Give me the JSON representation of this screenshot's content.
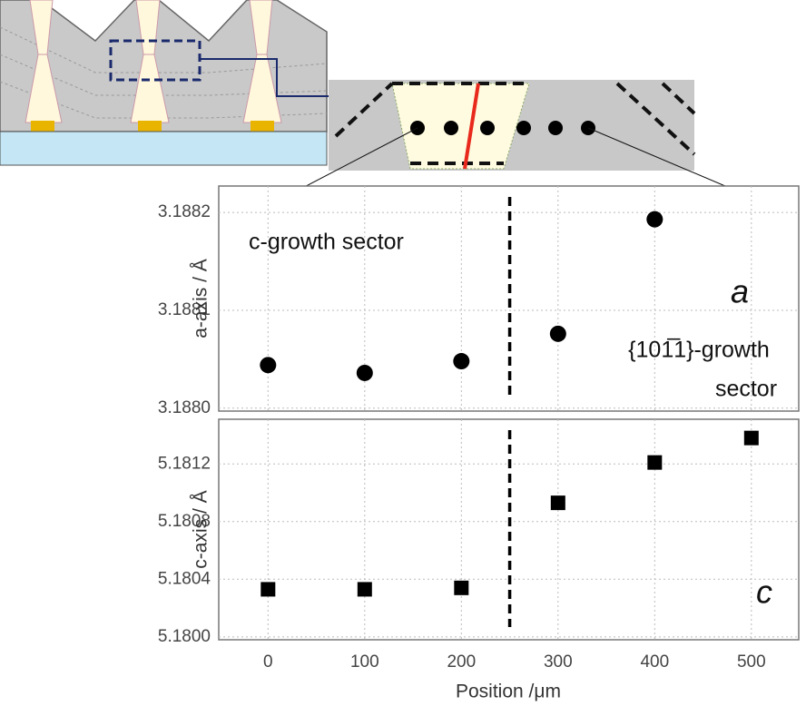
{
  "chart_data": [
    {
      "type": "scatter",
      "marker": "circle",
      "color": "#000000",
      "ylabel": "a-axis / Å",
      "x": [
        0,
        100,
        200,
        300,
        400
      ],
      "values": [
        3.188044,
        3.188036,
        3.188048,
        3.188076,
        3.188193
      ],
      "xlim": [
        -51,
        549
      ],
      "xticks": [
        0,
        100,
        200,
        300,
        400,
        500
      ],
      "ylim": [
        3.187997,
        3.188227
      ],
      "yticks": [
        {
          "value": 3.188,
          "label": "3.1880"
        },
        3.1881,
        3.1882
      ],
      "grid": true,
      "boundary_x": 250,
      "annotations": [
        "c-growth sector",
        "{101̅1}-growth",
        "sector",
        "a"
      ]
    },
    {
      "type": "scatter",
      "marker": "square",
      "color": "#000000",
      "ylabel": "c-axis / Å",
      "xlabel": "Position /μm",
      "x": [
        0,
        100,
        200,
        300,
        400,
        500
      ],
      "values": [
        5.18033,
        5.18033,
        5.18034,
        5.18093,
        5.18121,
        5.18138
      ],
      "xlim": [
        -51,
        549
      ],
      "xticks": [
        0,
        100,
        200,
        300,
        400,
        500
      ],
      "ylim": [
        5.17998,
        5.18151
      ],
      "yticks": [
        {
          "value": 5.18,
          "label": "5.1800"
        },
        5.1804,
        5.1808,
        5.1812
      ],
      "grid": true,
      "boundary_x": 250,
      "annotations": [
        "c"
      ]
    }
  ]
}
